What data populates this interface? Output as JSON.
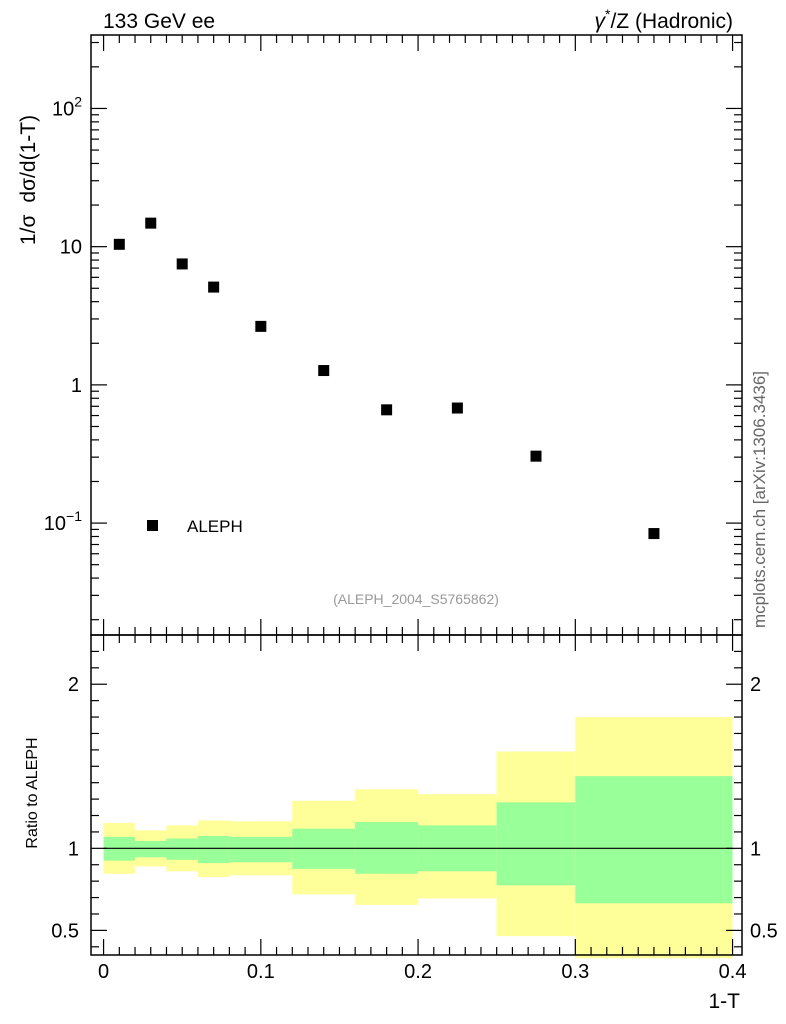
{
  "header": {
    "left": "133 GeV ee",
    "right_prefix": "γ",
    "right_sup": "*",
    "right_suffix": "/Z (Hadronic)"
  },
  "side_label": "mcplots.cern.ch [arXiv:1306.3436]",
  "analysis_id": "(ALEPH_2004_S5765862)",
  "colors": {
    "band_inner": "#99ff99",
    "band_outer": "#ffff99",
    "marker": "#000000"
  },
  "chart_data": [
    {
      "type": "scatter",
      "ylabel": "1/σ dσ/d(1-T)",
      "ylabel_parts": [
        "1/σ",
        "dσ/d(1-T)"
      ],
      "yscale": "log",
      "xlim": [
        -0.008,
        0.406
      ],
      "ylim": [
        0.0155,
        340
      ],
      "y_ticks": [
        {
          "value": 0.1,
          "base": "10",
          "exp": "−1"
        },
        {
          "value": 1,
          "text": "1"
        },
        {
          "value": 10,
          "text": "10"
        },
        {
          "value": 100,
          "base": "10",
          "exp": "2"
        }
      ],
      "legend": {
        "label": "ALEPH",
        "placement": "bottom-left"
      },
      "series": [
        {
          "name": "ALEPH",
          "x": [
            0.01,
            0.03,
            0.05,
            0.07,
            0.1,
            0.14,
            0.18,
            0.225,
            0.275,
            0.35
          ],
          "y": [
            10.4,
            14.8,
            7.5,
            5.1,
            2.65,
            1.27,
            0.66,
            0.68,
            0.305,
            0.084
          ]
        }
      ]
    },
    {
      "type": "area",
      "ylabel": "Ratio to ALEPH",
      "xlabel": "1-T",
      "xlim": [
        -0.008,
        0.406
      ],
      "ylim": [
        0.35,
        2.3
      ],
      "x_ticks": [
        "0",
        "0.1",
        "0.2",
        "0.3",
        "0.4"
      ],
      "y_ticks": [
        "0.5",
        "1",
        "2"
      ],
      "reference_line": 1,
      "bins": [
        {
          "lo": 0.0,
          "hi": 0.02,
          "inner": [
            0.925,
            1.07
          ],
          "outer": [
            0.845,
            1.155
          ]
        },
        {
          "lo": 0.02,
          "hi": 0.04,
          "inner": [
            0.945,
            1.045
          ],
          "outer": [
            0.89,
            1.11
          ]
        },
        {
          "lo": 0.04,
          "hi": 0.06,
          "inner": [
            0.93,
            1.06
          ],
          "outer": [
            0.86,
            1.14
          ]
        },
        {
          "lo": 0.06,
          "hi": 0.08,
          "inner": [
            0.91,
            1.075
          ],
          "outer": [
            0.825,
            1.17
          ]
        },
        {
          "lo": 0.08,
          "hi": 0.12,
          "inner": [
            0.915,
            1.07
          ],
          "outer": [
            0.835,
            1.165
          ]
        },
        {
          "lo": 0.12,
          "hi": 0.16,
          "inner": [
            0.875,
            1.12
          ],
          "outer": [
            0.72,
            1.29
          ]
        },
        {
          "lo": 0.16,
          "hi": 0.2,
          "inner": [
            0.845,
            1.16
          ],
          "outer": [
            0.655,
            1.36
          ]
        },
        {
          "lo": 0.2,
          "hi": 0.25,
          "inner": [
            0.86,
            1.14
          ],
          "outer": [
            0.695,
            1.33
          ]
        },
        {
          "lo": 0.25,
          "hi": 0.3,
          "inner": [
            0.775,
            1.28
          ],
          "outer": [
            0.465,
            1.59
          ]
        },
        {
          "lo": 0.3,
          "hi": 0.4,
          "inner": [
            0.665,
            1.44
          ],
          "outer": [
            0.33,
            1.8
          ]
        }
      ]
    }
  ]
}
